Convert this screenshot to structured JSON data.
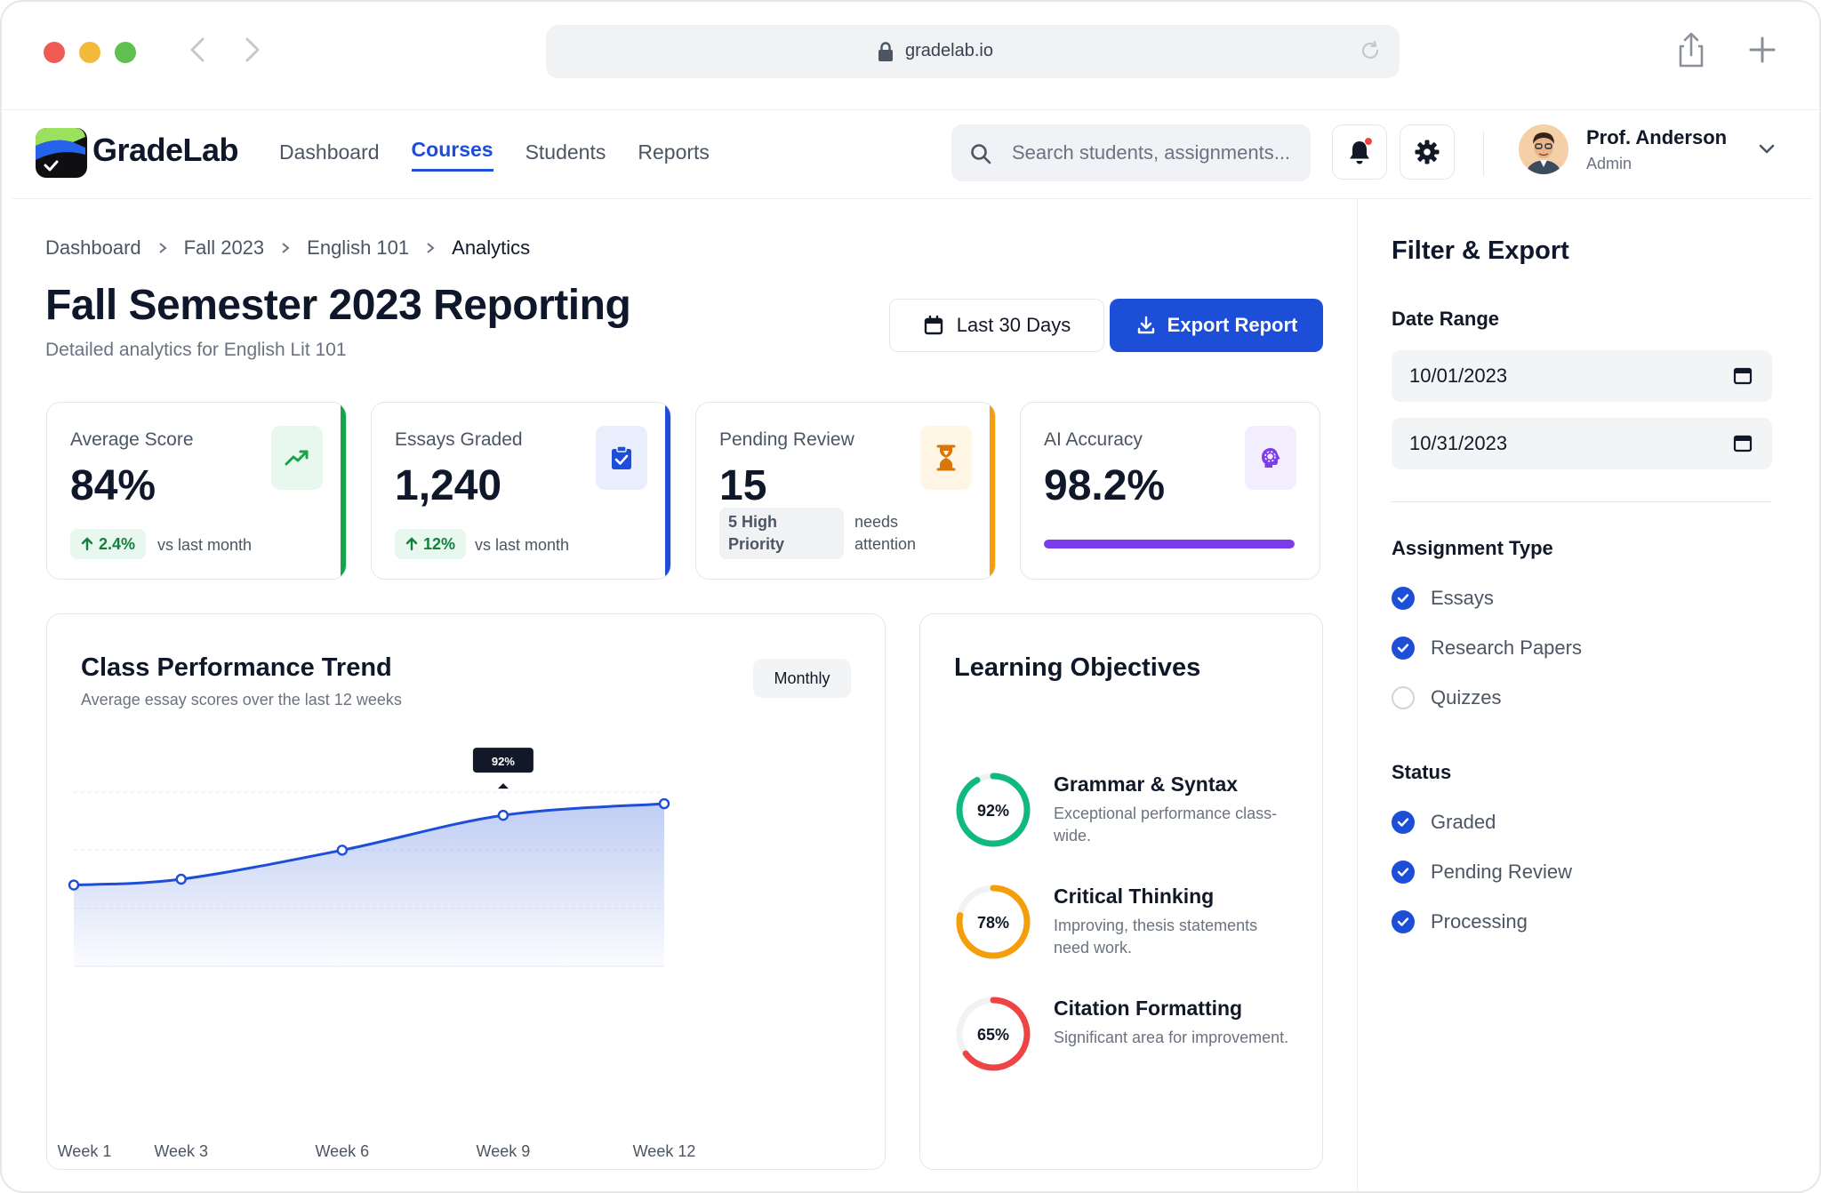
{
  "browser": {
    "url": "gradelab.io"
  },
  "app": {
    "name": "GradeLab",
    "nav": [
      {
        "label": "Dashboard"
      },
      {
        "label": "Courses"
      },
      {
        "label": "Students"
      },
      {
        "label": "Reports"
      }
    ],
    "active_nav": "Courses",
    "search": {
      "placeholder": "Search students, assignments..."
    },
    "user": {
      "name": "Prof. Anderson",
      "role": "Admin"
    }
  },
  "breadcrumb": [
    "Dashboard",
    "Fall 2023",
    "English 101",
    "Analytics"
  ],
  "page": {
    "title": "Fall Semester 2023 Reporting",
    "subtitle": "Detailed analytics for English Lit 101",
    "range_button": "Last 30 Days",
    "export_button": "Export Report"
  },
  "stats": {
    "avg": {
      "label": "Average Score",
      "value": "84%",
      "delta": "2.4%",
      "note": "vs last month",
      "accent": "#16a34a"
    },
    "graded": {
      "label": "Essays Graded",
      "value": "1,240",
      "delta": "12%",
      "note": "vs last month",
      "accent": "#1d4ed8"
    },
    "pending": {
      "label": "Pending Review",
      "value": "15",
      "priority": "5 High Priority",
      "note": "needs attention",
      "accent": "#f59e0b"
    },
    "ai": {
      "label": "AI Accuracy",
      "value": "98.2%",
      "accent": "#7c3aed",
      "progress": 1.0
    }
  },
  "chart": {
    "title": "Class Performance Trend",
    "subtitle": "Average essay scores over the last 12 weeks",
    "toggle": "Monthly",
    "tooltip": "92%"
  },
  "chart_data": {
    "type": "area",
    "x": [
      1,
      3,
      6,
      9,
      12
    ],
    "tick_labels": [
      "Week 1",
      "Week 3",
      "Week 6",
      "Week 9",
      "Week 12"
    ],
    "values": [
      68,
      70,
      80,
      92,
      96
    ],
    "ylim": [
      40,
      100
    ],
    "color": "#1d4ed8",
    "grid": true,
    "tooltip_index": 3
  },
  "objectives": {
    "title": "Learning Objectives",
    "items": [
      {
        "name": "Grammar & Syntax",
        "percent": 92,
        "label": "92%",
        "desc": "Exceptional performance class-wide.",
        "color": "#10b981"
      },
      {
        "name": "Critical Thinking",
        "percent": 78,
        "label": "78%",
        "desc": "Improving, thesis statements need work.",
        "color": "#f59e0b"
      },
      {
        "name": "Citation Formatting",
        "percent": 65,
        "label": "65%",
        "desc": "Significant area for improvement.",
        "color": "#ef4444"
      }
    ]
  },
  "filter": {
    "title": "Filter & Export",
    "date_label": "Date Range",
    "start_date": "10/01/2023",
    "end_date": "10/31/2023",
    "type_label": "Assignment Type",
    "types": [
      {
        "label": "Essays",
        "checked": true
      },
      {
        "label": "Research Papers",
        "checked": true
      },
      {
        "label": "Quizzes",
        "checked": false
      }
    ],
    "status_label": "Status",
    "statuses": [
      {
        "label": "Graded",
        "checked": true
      },
      {
        "label": "Pending Review",
        "checked": true
      },
      {
        "label": "Processing",
        "checked": true
      }
    ]
  }
}
